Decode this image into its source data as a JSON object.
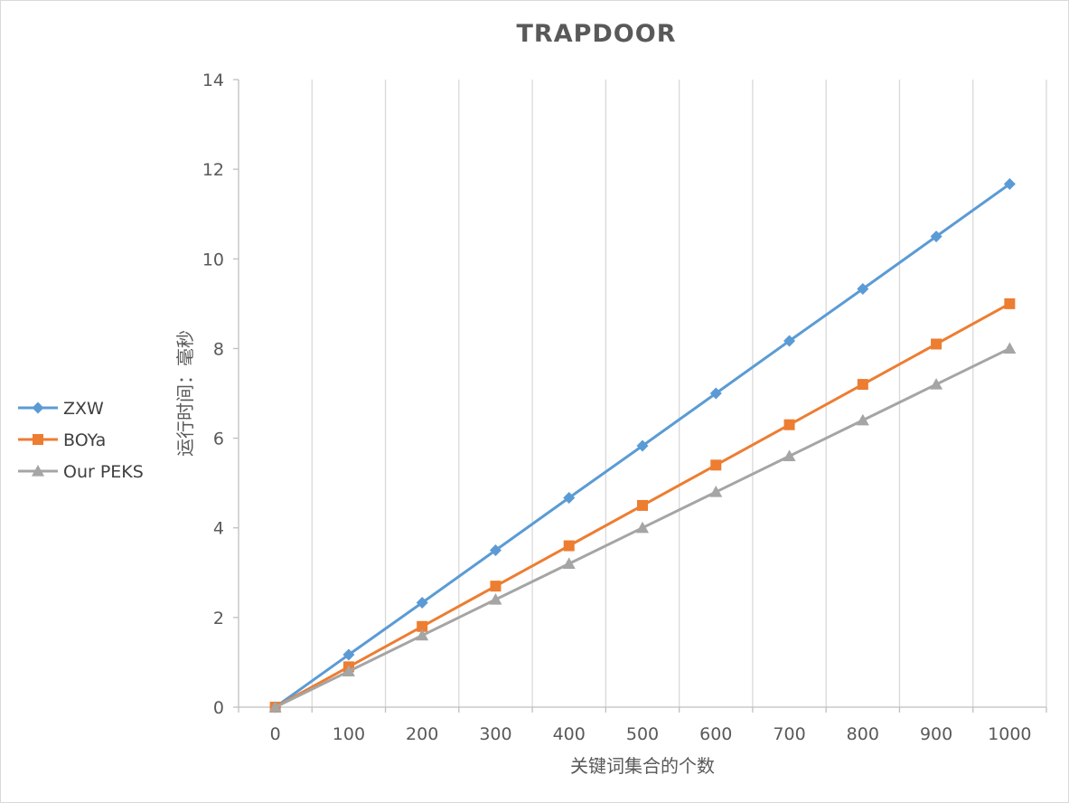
{
  "chart_data": {
    "type": "line",
    "title": "TRAPDOOR",
    "xlabel": "关键词集合的个数",
    "ylabel": "运行时间：毫秒",
    "x": [
      0,
      100,
      200,
      300,
      400,
      500,
      600,
      700,
      800,
      900,
      1000
    ],
    "ylim": [
      0,
      14
    ],
    "yticks": [
      0,
      2,
      4,
      6,
      8,
      10,
      12,
      14
    ],
    "grid": "vertical",
    "legend": "left",
    "series": [
      {
        "name": "ZXW",
        "color": "#5b9bd5",
        "marker": "diamond",
        "values": [
          0,
          1.17,
          2.33,
          3.5,
          4.67,
          5.83,
          7.0,
          8.17,
          9.33,
          10.5,
          11.67
        ]
      },
      {
        "name": "BOYa",
        "color": "#ed7d31",
        "marker": "square",
        "values": [
          0,
          0.9,
          1.8,
          2.7,
          3.6,
          4.5,
          5.4,
          6.3,
          7.2,
          8.1,
          9.0
        ]
      },
      {
        "name": "Our PEKS",
        "color": "#a5a5a5",
        "marker": "triangle",
        "values": [
          0,
          0.8,
          1.6,
          2.4,
          3.2,
          4.0,
          4.8,
          5.6,
          6.4,
          7.2,
          8.0
        ]
      }
    ]
  }
}
